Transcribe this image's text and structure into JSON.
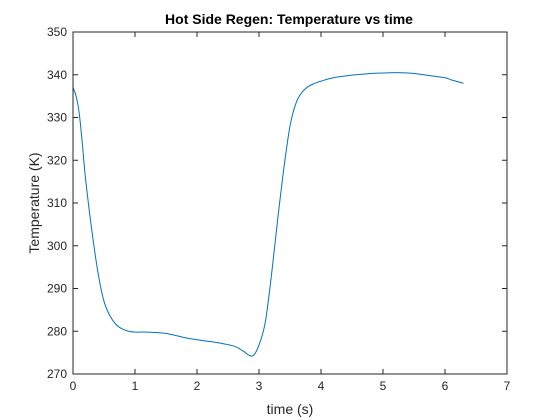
{
  "chart_data": {
    "type": "line",
    "title": "Hot Side Regen: Temperature vs time",
    "xlabel": "time (s)",
    "ylabel": "Temperature (K)",
    "xlim": [
      0,
      7
    ],
    "ylim": [
      270,
      350
    ],
    "xticks": [
      0,
      1,
      2,
      3,
      4,
      5,
      6,
      7
    ],
    "yticks": [
      270,
      280,
      290,
      300,
      310,
      320,
      330,
      340,
      350
    ],
    "grid": false,
    "line_color": "#0072BD",
    "series": [
      {
        "x": [
          0,
          0.05,
          0.1,
          0.15,
          0.2,
          0.3,
          0.4,
          0.5,
          0.6,
          0.7,
          0.8,
          0.9,
          1.0,
          1.2,
          1.5,
          1.8,
          2.0,
          2.3,
          2.6,
          2.75,
          2.85,
          2.92,
          3.0,
          3.1,
          3.2,
          3.3,
          3.4,
          3.5,
          3.6,
          3.7,
          3.8,
          3.9,
          4.0,
          4.2,
          4.5,
          4.8,
          5.0,
          5.2,
          5.5,
          5.8,
          6.0,
          6.1,
          6.2,
          6.3
        ],
        "y": [
          337,
          335,
          331,
          324,
          316,
          304,
          294,
          287,
          283.5,
          281.5,
          280.5,
          280,
          279.8,
          279.8,
          279.5,
          278.5,
          278,
          277.4,
          276.5,
          275.3,
          274.3,
          274.5,
          276.8,
          282,
          293,
          306,
          318,
          328,
          333.5,
          336,
          337.3,
          338,
          338.5,
          339.3,
          339.9,
          340.3,
          340.4,
          340.5,
          340.3,
          339.7,
          339.3,
          338.8,
          338.4,
          338
        ]
      }
    ]
  }
}
